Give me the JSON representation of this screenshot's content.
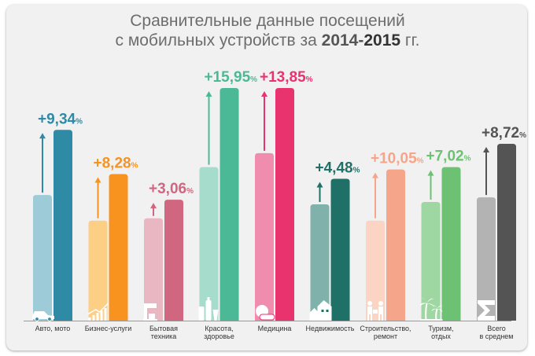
{
  "title": {
    "line1": "Сравнительные данные посещений",
    "line2_prefix": "с мобильных устройств за ",
    "year_from": "2014",
    "dash": "-",
    "year_to": "2015",
    "line2_suffix": " гг."
  },
  "chart_data": {
    "type": "bar",
    "title": "Сравнительные данные посещений с мобильных устройств за 2014-2015 гг.",
    "xlabel": "",
    "ylabel": "",
    "series_names": [
      "2014",
      "2015"
    ],
    "categories": [
      {
        "label": [
          "Авто, мото"
        ],
        "v2014": 0.54,
        "v2015": 0.82,
        "change": "+9,34",
        "light": "#9ecbd8",
        "dark": "#2f8aa5",
        "icon": "car-icon"
      },
      {
        "label": [
          "Бизнес-услуги"
        ],
        "v2014": 0.43,
        "v2015": 0.63,
        "change": "+8,28",
        "light": "#fccf85",
        "dark": "#f7931e",
        "icon": "growth-chart-icon"
      },
      {
        "label": [
          "Бытовая",
          "техника"
        ],
        "v2014": 0.44,
        "v2015": 0.52,
        "change": "+3,06",
        "light": "#e8b7c2",
        "dark": "#d0667f",
        "icon": "coffee-machine-icon"
      },
      {
        "label": [
          "Красота,",
          "здоровье"
        ],
        "v2014": 0.66,
        "v2015": 1.0,
        "change": "+15,95",
        "light": "#a5dccb",
        "dark": "#4cb996",
        "icon": "cosmetics-icon"
      },
      {
        "label": [
          "Медицина"
        ],
        "v2014": 0.72,
        "v2015": 1.0,
        "change": "+13,85",
        "light": "#f08daf",
        "dark": "#e8336f",
        "icon": "pills-icon"
      },
      {
        "label": [
          "Недвижимость"
        ],
        "v2014": 0.5,
        "v2015": 0.61,
        "change": "+4,48",
        "light": "#80b2ab",
        "dark": "#1f7168",
        "icon": "houses-icon"
      },
      {
        "label": [
          "Строительство,",
          "ремонт"
        ],
        "v2014": 0.43,
        "v2015": 0.65,
        "change": "+10,05",
        "light": "#fbd4c3",
        "dark": "#f4a58a",
        "icon": "builders-icon"
      },
      {
        "label": [
          "Туризм,",
          "отдых"
        ],
        "v2014": 0.51,
        "v2015": 0.66,
        "change": "+7,02",
        "light": "#9fd7a2",
        "dark": "#6cc272",
        "icon": "palm-trees-icon"
      },
      {
        "label": [
          "Всего",
          "в среднем"
        ],
        "v2014": 0.53,
        "v2015": 0.76,
        "change": "+8,72",
        "light": "#b3b3b3",
        "dark": "#545454",
        "icon": "sigma-icon"
      }
    ],
    "value_scale_note": "relative bar heights, max = 1.0 (no numeric axis shown)",
    "percent_suffix": "%",
    "grid": false,
    "legend": "none"
  }
}
